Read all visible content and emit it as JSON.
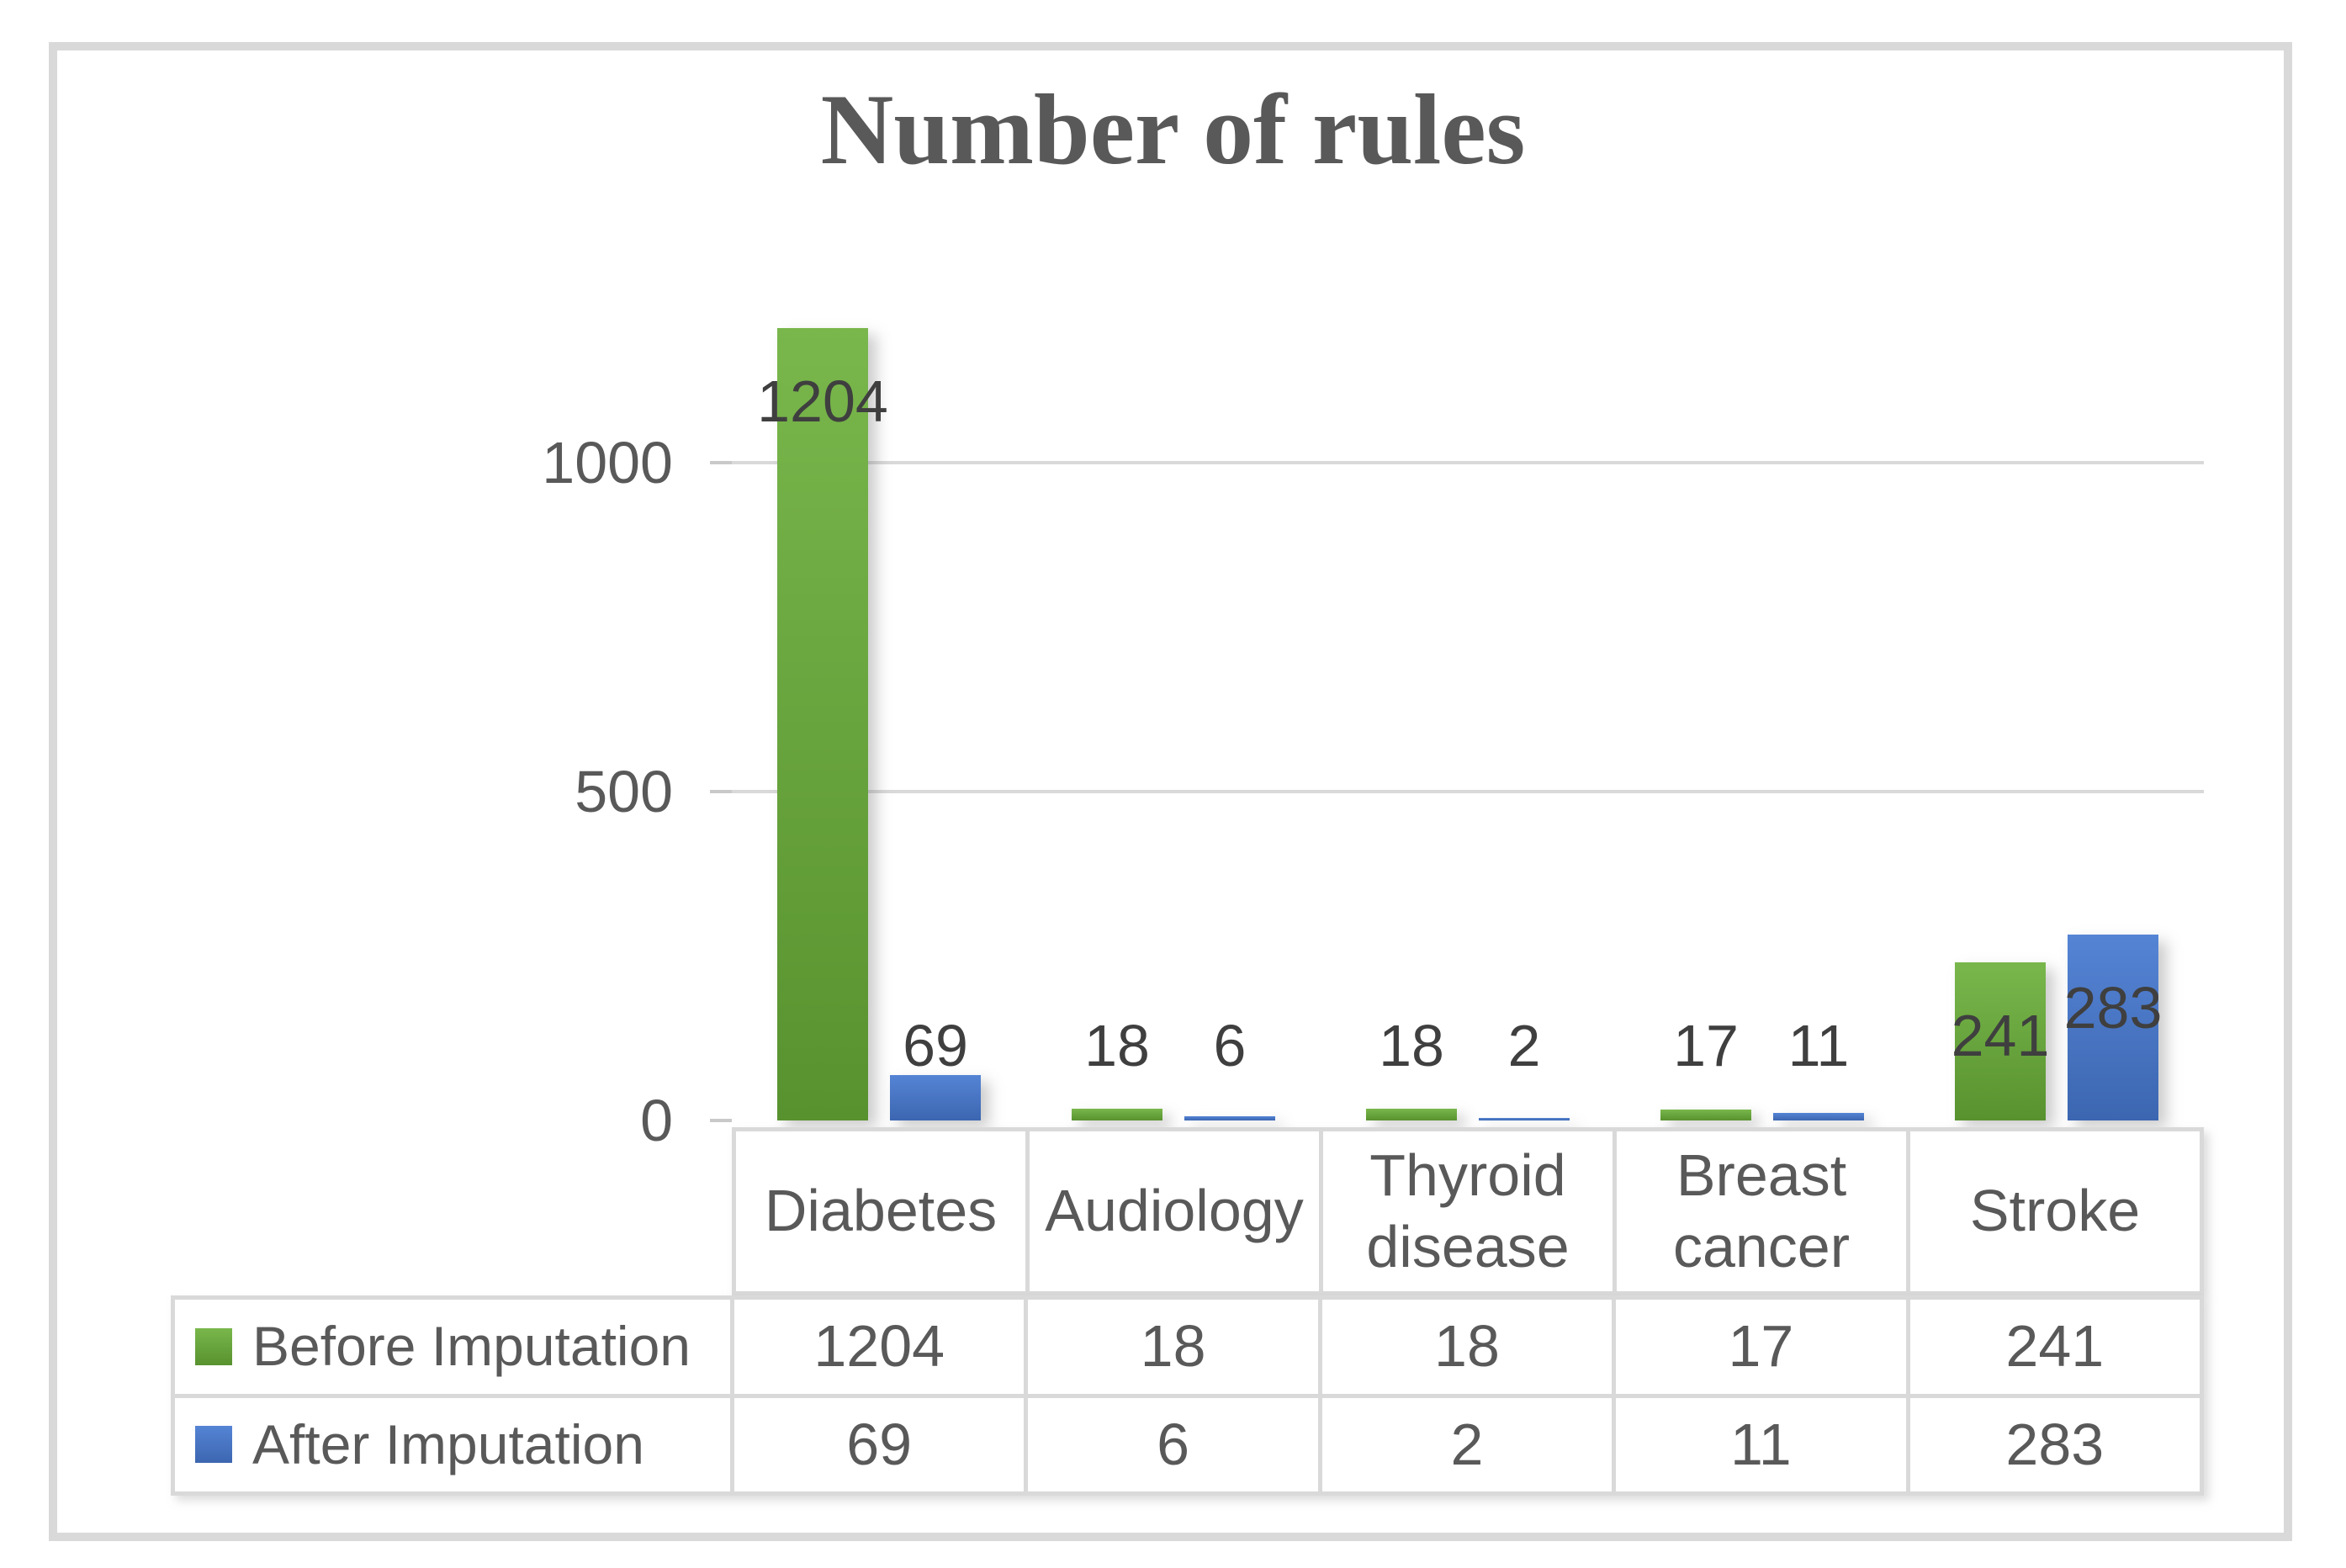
{
  "title": "Number of rules",
  "chart_data": {
    "type": "bar",
    "title": "Number of rules",
    "categories": [
      "Diabetes",
      "Audiology",
      "Thyroid disease",
      "Breast cancer",
      "Stroke"
    ],
    "series": [
      {
        "name": "Before Imputation",
        "color": "#6aaa44",
        "values": [
          1204,
          18,
          18,
          17,
          241
        ]
      },
      {
        "name": "After Imputation",
        "color": "#4472c4",
        "values": [
          69,
          6,
          2,
          11,
          283
        ]
      }
    ],
    "xlabel": "",
    "ylabel": "",
    "y_ticks": [
      0,
      500,
      1000
    ],
    "ylim": [
      0,
      1250
    ],
    "grid": true,
    "data_labels": true,
    "legend_position": "bottom-table"
  },
  "table": {
    "category_headers": [
      "Diabetes",
      "Audiology",
      "Thyroid disease",
      "Breast cancer",
      "Stroke"
    ],
    "rows": [
      {
        "legend": "Before Imputation",
        "values": [
          "1204",
          "18",
          "18",
          "17",
          "241"
        ]
      },
      {
        "legend": "After Imputation",
        "values": [
          "69",
          "6",
          "2",
          "11",
          "283"
        ]
      }
    ]
  },
  "colors": {
    "series_green": "#6aaa44",
    "series_blue": "#4472c4",
    "gridline": "#d9d9d9",
    "frame_border": "#d9d9d9",
    "text": "#595959",
    "data_label": "#3f3f3f"
  }
}
